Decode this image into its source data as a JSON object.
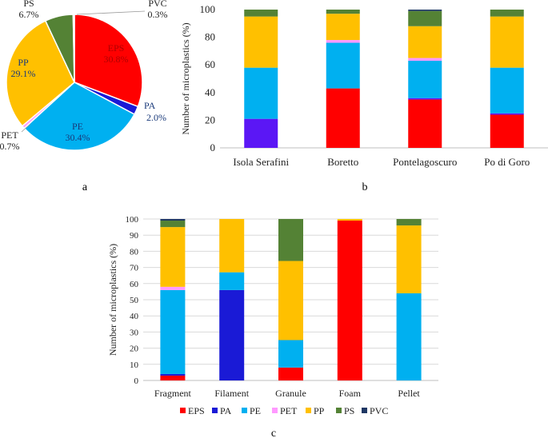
{
  "panel_labels": {
    "a": "a",
    "b": "b",
    "c": "c"
  },
  "colors": {
    "EPS": "#FF0000",
    "PA": "#1A1AD6",
    "PE": "#00B0F0",
    "PET": "#FF99FF",
    "PP": "#FFC000",
    "PS": "#548235",
    "PVC": "#1F3864",
    "PA_b": "#5B17F5"
  },
  "legend": [
    "EPS",
    "PA",
    "PE",
    "PET",
    "PP",
    "PS",
    "PVC"
  ],
  "chart_data": [
    {
      "type": "pie",
      "panel": "a",
      "slices": [
        {
          "name": "EPS",
          "value": 30.8,
          "label": "EPS",
          "pct": "30.8%"
        },
        {
          "name": "PA",
          "value": 2.0,
          "label": "PA",
          "pct": "2.0%"
        },
        {
          "name": "PE",
          "value": 30.4,
          "label": "PE",
          "pct": "30.4%"
        },
        {
          "name": "PET",
          "value": 0.7,
          "label": "PET",
          "pct": "0.7%"
        },
        {
          "name": "PP",
          "value": 29.1,
          "label": "PP",
          "pct": "29.1%"
        },
        {
          "name": "PS",
          "value": 6.7,
          "label": "PS",
          "pct": "6.7%"
        },
        {
          "name": "PVC",
          "value": 0.3,
          "label": "PVC",
          "pct": "0.3%"
        }
      ]
    },
    {
      "type": "bar",
      "stacked": true,
      "panel": "b",
      "ylabel": "Number of microplastics (%)",
      "ylim": [
        0,
        100
      ],
      "yticks": [
        0,
        20,
        40,
        60,
        80,
        100
      ],
      "categories": [
        "Isola Serafini",
        "Boretto",
        "Pontelagoscuro",
        "Po di Goro"
      ],
      "series": [
        {
          "name": "EPS",
          "values": [
            0,
            43,
            35,
            24
          ]
        },
        {
          "name": "PA",
          "values": [
            21,
            0,
            1,
            1
          ]
        },
        {
          "name": "PE",
          "values": [
            37,
            33,
            27,
            33
          ]
        },
        {
          "name": "PET",
          "values": [
            0,
            2,
            2,
            0
          ]
        },
        {
          "name": "PP",
          "values": [
            37,
            19,
            23,
            37
          ]
        },
        {
          "name": "PS",
          "values": [
            5,
            3,
            11,
            5
          ]
        },
        {
          "name": "PVC",
          "values": [
            0,
            0,
            1,
            0
          ]
        }
      ]
    },
    {
      "type": "bar",
      "stacked": true,
      "panel": "c",
      "ylabel": "Number of microplastics (%)",
      "ylim": [
        0,
        100
      ],
      "yticks": [
        0,
        10,
        20,
        30,
        40,
        50,
        60,
        70,
        80,
        90,
        100
      ],
      "categories": [
        "Fragment",
        "Filament",
        "Granule",
        "Foam",
        "Pellet"
      ],
      "legend_position": "bottom",
      "series": [
        {
          "name": "EPS",
          "values": [
            3,
            0,
            8,
            99,
            0
          ]
        },
        {
          "name": "PA",
          "values": [
            1,
            56,
            0,
            0,
            0
          ]
        },
        {
          "name": "PE",
          "values": [
            52,
            11,
            17,
            0,
            54
          ]
        },
        {
          "name": "PET",
          "values": [
            2,
            0,
            0,
            0,
            0
          ]
        },
        {
          "name": "PP",
          "values": [
            37,
            33,
            49,
            1,
            42
          ]
        },
        {
          "name": "PS",
          "values": [
            4,
            0,
            26,
            0,
            4
          ]
        },
        {
          "name": "PVC",
          "values": [
            1,
            0,
            0,
            0,
            0
          ]
        }
      ]
    }
  ]
}
